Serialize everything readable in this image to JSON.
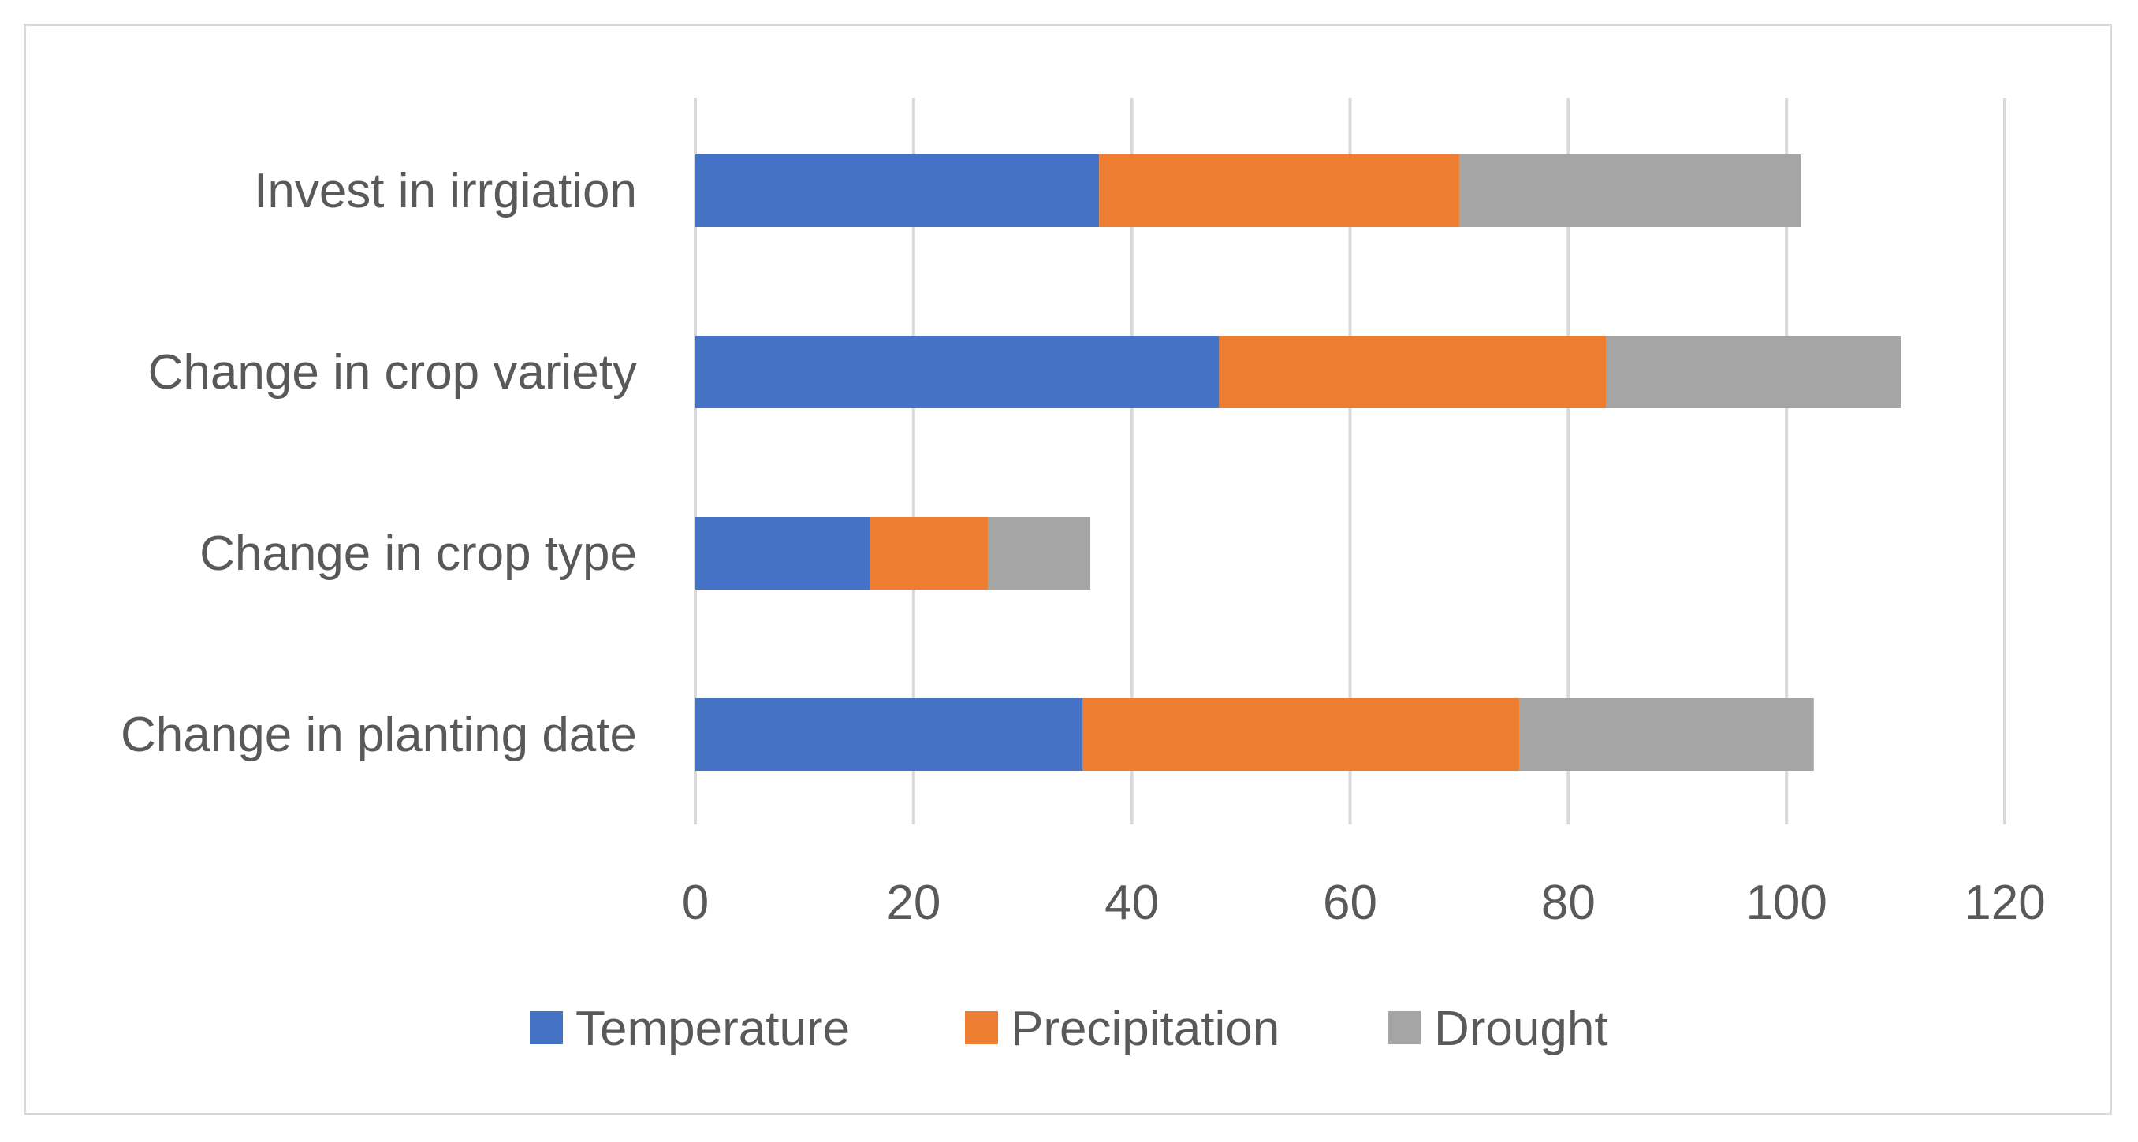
{
  "chart_data": {
    "type": "bar",
    "orientation": "horizontal",
    "stacked": true,
    "title": "",
    "xlabel": "",
    "ylabel": "",
    "categories": [
      "Invest in irrgiation",
      "Change in crop variety",
      "Change in crop type",
      "Change in planting date"
    ],
    "series": [
      {
        "name": "Temperature",
        "color": "#4472c4",
        "values": [
          37,
          48,
          16,
          35.5
        ]
      },
      {
        "name": "Precipitation",
        "color": "#ed7d31",
        "values": [
          33,
          35.5,
          10.8,
          40
        ]
      },
      {
        "name": "Drought",
        "color": "#a5a5a5",
        "values": [
          31.3,
          27,
          9.4,
          27
        ]
      }
    ],
    "xlim": [
      0,
      120
    ],
    "xticks": [
      "0",
      "20",
      "40",
      "60",
      "80",
      "100",
      "120"
    ],
    "grid": true,
    "legend_position": "bottom"
  }
}
